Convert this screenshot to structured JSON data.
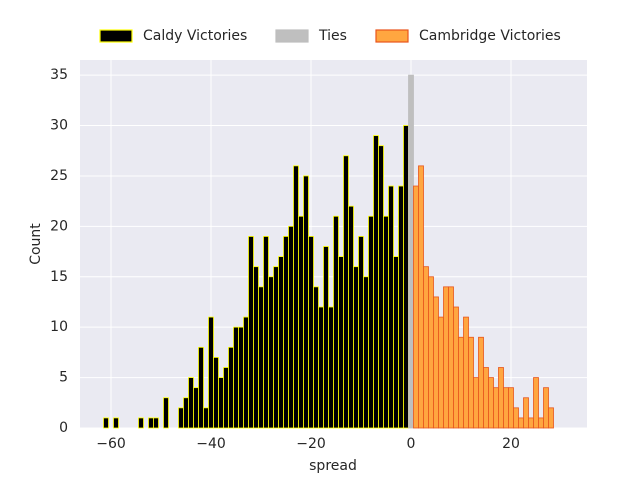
{
  "chart_data": {
    "type": "histogram",
    "xlabel": "spread",
    "ylabel": "Count",
    "xlim": [
      -66.2,
      35.2
    ],
    "ylim": [
      0,
      36.5
    ],
    "xticks": [
      {
        "value": -60,
        "label": "−60"
      },
      {
        "value": -40,
        "label": "−40"
      },
      {
        "value": -20,
        "label": "−20"
      },
      0,
      20
    ],
    "yticks": [
      0,
      5,
      10,
      15,
      20,
      25,
      30,
      35
    ],
    "grid": true,
    "legend": "top",
    "series": [
      {
        "name": "Caldy Victories",
        "color": "#000000",
        "edgecolor": "#ffff00",
        "bins": [
          -61.5,
          -60.5,
          -59.5,
          -58.5,
          -57.5,
          -56.5,
          -55.5,
          -54.5,
          -53.5,
          -52.5,
          -51.5,
          -50.5,
          -49.5,
          -48.5,
          -47.5,
          -46.5,
          -45.5,
          -44.5,
          -43.5,
          -42.5,
          -41.5,
          -40.5,
          -39.5,
          -38.5,
          -37.5,
          -36.5,
          -35.5,
          -34.5,
          -33.5,
          -32.5,
          -31.5,
          -30.5,
          -29.5,
          -28.5,
          -27.5,
          -26.5,
          -25.5,
          -24.5,
          -23.5,
          -22.5,
          -21.5,
          -20.5,
          -19.5,
          -18.5,
          -17.5,
          -16.5,
          -15.5,
          -14.5,
          -13.5,
          -12.5,
          -11.5,
          -10.5,
          -9.5,
          -8.5,
          -7.5,
          -6.5,
          -5.5,
          -4.5,
          -3.5,
          -2.5,
          -1.5,
          -0.5
        ],
        "values": [
          1,
          0,
          1,
          0,
          0,
          0,
          0,
          1,
          0,
          1,
          1,
          0,
          3,
          0,
          0,
          2,
          3,
          5,
          4,
          8,
          2,
          11,
          7,
          5,
          6,
          8,
          10,
          10,
          11,
          19,
          16,
          14,
          19,
          15,
          16,
          17,
          19,
          20,
          26,
          21,
          25,
          19,
          14,
          12,
          18,
          12,
          21,
          17,
          27,
          22,
          16,
          19,
          15,
          21,
          29,
          28,
          21,
          24,
          17,
          24,
          30
        ]
      },
      {
        "name": "Ties",
        "color": "#bfbfbf",
        "edgecolor": "#bfbfbf",
        "bins": [
          -0.5,
          0.5
        ],
        "values": [
          35
        ]
      },
      {
        "name": "Cambridge Victories",
        "color": "#ffa640",
        "edgecolor": "#e8551c",
        "bins": [
          0.5,
          1.5,
          2.5,
          3.5,
          4.5,
          5.5,
          6.5,
          7.5,
          8.5,
          9.5,
          10.5,
          11.5,
          12.5,
          13.5,
          14.5,
          15.5,
          16.5,
          17.5,
          18.5,
          19.5,
          20.5,
          21.5,
          22.5,
          23.5,
          24.5,
          25.5,
          26.5,
          27.5,
          28.5
        ],
        "values": [
          24,
          26,
          16,
          15,
          13,
          11,
          14,
          14,
          12,
          9,
          11,
          9,
          5,
          9,
          6,
          5,
          4,
          6,
          4,
          4,
          2,
          1,
          3,
          1,
          5,
          1,
          4,
          2
        ]
      }
    ]
  }
}
